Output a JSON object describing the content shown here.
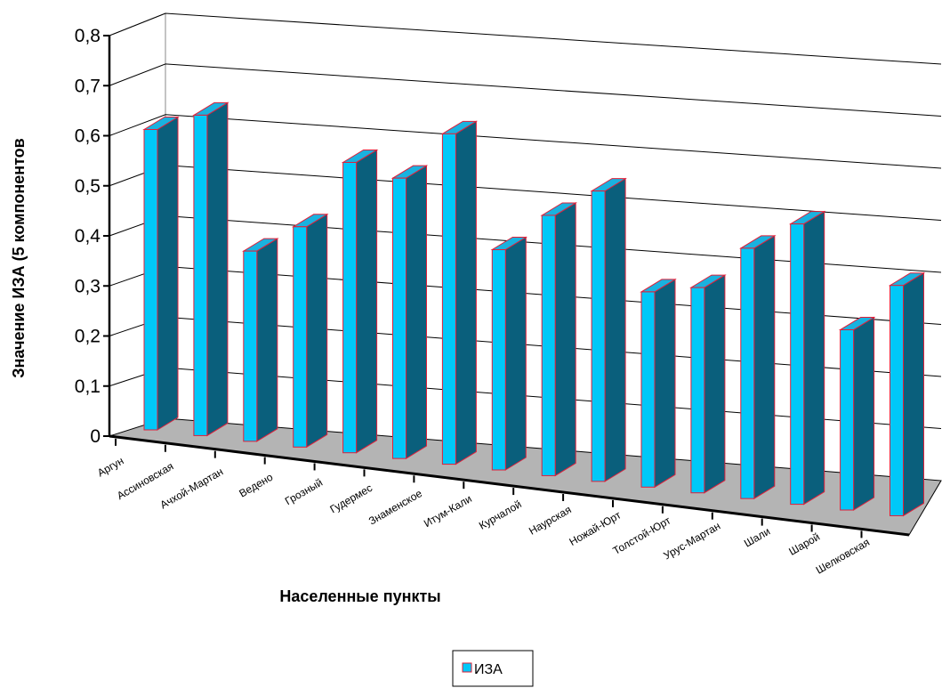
{
  "chart_data": {
    "type": "bar",
    "categories": [
      "Аргун",
      "Ассиновская",
      "Ачхой-Мартан",
      "Ведено",
      "Грозный",
      "Гудермес",
      "Знаменское",
      "Итум-Кали",
      "Курчалой",
      "Наурская",
      "Ножай-Юрт",
      "Толстой-Юрт",
      "Урус-Мартан",
      "Шали",
      "Шарой",
      "Шелковская"
    ],
    "series": [
      {
        "name": "ИЗА",
        "values": [
          0.6,
          0.64,
          0.38,
          0.44,
          0.58,
          0.56,
          0.66,
          0.44,
          0.52,
          0.58,
          0.39,
          0.41,
          0.5,
          0.56,
          0.36,
          0.46
        ]
      }
    ],
    "ylabel": "Значение ИЗА (5 компонентов",
    "xlabel": "Населенные пункты",
    "yticks": [
      "0",
      "0,1",
      "0,2",
      "0,3",
      "0,4",
      "0,5",
      "0,6",
      "0,7",
      "0,8"
    ],
    "ylim": [
      0,
      0.8
    ],
    "grid": true,
    "legend_position": "bottom",
    "colors": {
      "bar_front": "#00c8f8",
      "bar_side": "#0a5f7c",
      "bar_top": "#1ab2df",
      "bar_edge": "#e0203a",
      "floor": "#b4b4b4",
      "grid": "#000000"
    }
  }
}
